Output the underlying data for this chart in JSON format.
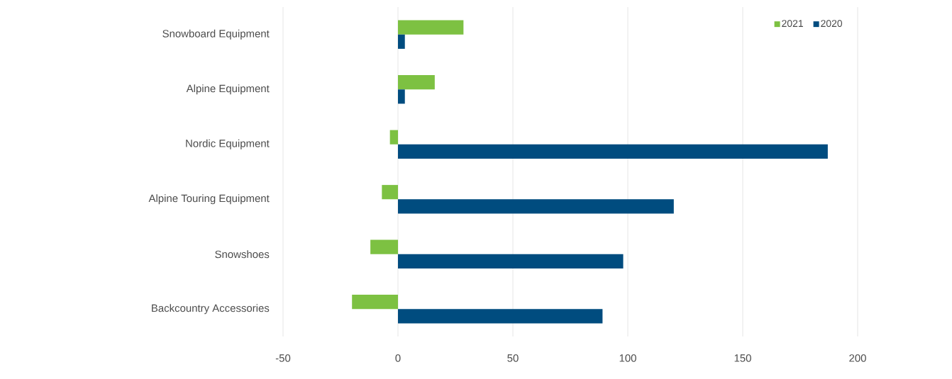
{
  "chart_data": {
    "type": "bar",
    "orientation": "horizontal",
    "categories": [
      "Snowboard Equipment",
      "Alpine Equipment",
      "Nordic Equipment",
      "Alpine Touring Equipment",
      "Snowshoes",
      "Backcountry Accessories"
    ],
    "series": [
      {
        "name": "2021",
        "color": "#7dc142",
        "values": [
          28.5,
          16,
          -3.5,
          -7,
          -12,
          -20
        ]
      },
      {
        "name": "2020",
        "color": "#004c7f",
        "values": [
          3,
          3,
          187,
          120,
          98,
          89
        ]
      }
    ],
    "xlim": [
      -50,
      200
    ],
    "xticks": [
      -50,
      0,
      50,
      100,
      150,
      200
    ],
    "grid": "x",
    "legend": "top right"
  }
}
